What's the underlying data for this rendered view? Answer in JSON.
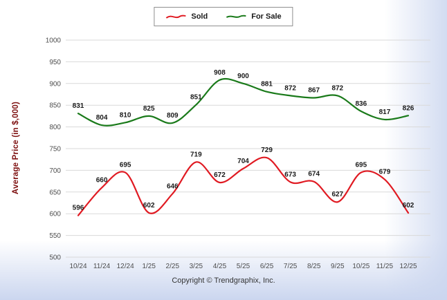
{
  "chart_data": {
    "type": "line",
    "categories": [
      "10/24",
      "11/24",
      "12/24",
      "1/25",
      "2/25",
      "3/25",
      "4/25",
      "5/25",
      "6/25",
      "7/25",
      "8/25",
      "9/25",
      "10/25",
      "11/25",
      "12/25"
    ],
    "series": [
      {
        "name": "Sold",
        "color": "#e01a22",
        "values": [
          596,
          660,
          695,
          602,
          646,
          719,
          672,
          704,
          729,
          673,
          674,
          627,
          695,
          679,
          602
        ]
      },
      {
        "name": "For Sale",
        "color": "#1a7a1a",
        "values": [
          831,
          804,
          810,
          825,
          809,
          851,
          908,
          900,
          881,
          872,
          867,
          872,
          836,
          817,
          826
        ]
      }
    ],
    "title": "",
    "xlabel": "",
    "ylabel": "Average Price (in $,000)",
    "ylim": [
      500,
      1000
    ],
    "yticks": [
      500,
      550,
      600,
      650,
      700,
      750,
      800,
      850,
      900,
      950,
      1000
    ],
    "grid": true,
    "legend_position": "top"
  },
  "footer": {
    "copyright": "Copyright © Trendgraphix, Inc."
  },
  "colors": {
    "grid": "#d9d9d9",
    "background_fade": "#cbd6ef"
  }
}
